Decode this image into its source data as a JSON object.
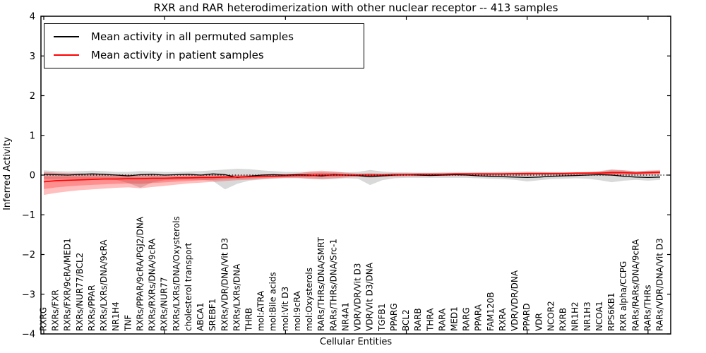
{
  "title": "RXR and RAR heterodimerization with other nuclear receptor -- 413 samples",
  "axes": {
    "ylabel": "Inferred Activity",
    "xlabel": "Cellular Entities"
  },
  "legend": {
    "items": [
      {
        "label": "Mean activity in all permuted samples",
        "color": "#000000"
      },
      {
        "label": "Mean activity in patient samples",
        "color": "#ff0000"
      }
    ]
  },
  "chart_data": {
    "type": "line",
    "title": "RXR and RAR heterodimerization with other nuclear receptor -- 413 samples",
    "xlabel": "Cellular Entities",
    "ylabel": "Inferred Activity",
    "ylim": [
      -4,
      4
    ],
    "yticks": [
      -4,
      -3,
      -2,
      -1,
      0,
      1,
      2,
      3,
      4
    ],
    "ytick_labels": [
      "−4",
      "−3",
      "−2",
      "−1",
      "0",
      "1",
      "2",
      "3",
      "4"
    ],
    "x_major_ticks": [
      0,
      10,
      20,
      30,
      40,
      50
    ],
    "grid": false,
    "legend_position": "upper left",
    "zero_line": {
      "y": 0,
      "style": "dotted",
      "color": "#000000"
    },
    "categories": [
      "RXRG",
      "RXRs/FXR",
      "RXRs/FXR/9cRA/MED1",
      "RXRs/NUR77/BCL2",
      "RXRs/PPAR",
      "RXRs/LXRs/DNA/9cRA",
      "NR1H4",
      "TNF",
      "RXRs/PPAR/9cRA/PGJ2/DNA",
      "RXRs/RXRs/DNA/9cRA",
      "RXRs/NUR77",
      "RXRs/LXRs/DNA/Oxysterols",
      "cholesterol transport",
      "ABCA1",
      "SREBF1",
      "RXRs/VDR/DNA/Vit D3",
      "RXRs/LXRs/DNA",
      "THRB",
      "mol:ATRA",
      "mol:Bile acids",
      "mol:Vit D3",
      "mol:9cRA",
      "mol:Oxysterols",
      "RARs/THRs/DNA/SMRT",
      "RARs/THRs/DNA/Src-1",
      "NR4A1",
      "VDR/VDR/Vit D3",
      "VDR/Vit D3/DNA",
      "TGFB1",
      "PPARG",
      "BCL2",
      "RARB",
      "THRA",
      "RARA",
      "MED1",
      "RARG",
      "PPARA",
      "FAM120B",
      "RXRA",
      "VDR/VDR/DNA",
      "PPARD",
      "VDR",
      "NCOR2",
      "RXRB",
      "NR1H2",
      "NR1H3",
      "NCOA1",
      "RPS6KB1",
      "RXR alpha/CCPG",
      "RARs/RARs/DNA/9cRA",
      "RARs/THRs",
      "RARs/VDR/DNA/Vit D3"
    ],
    "series": [
      {
        "name": "Mean activity in all permuted samples",
        "color": "#000000",
        "band_color": "#808080",
        "band_opacity": 0.3,
        "values": [
          0.02,
          0.01,
          0.0,
          0.02,
          0.03,
          0.02,
          0.0,
          -0.02,
          0.01,
          0.02,
          0.0,
          0.01,
          0.02,
          0.0,
          0.03,
          0.01,
          -0.06,
          -0.03,
          0.0,
          0.01,
          0.0,
          0.01,
          0.0,
          -0.02,
          0.01,
          0.0,
          -0.01,
          -0.04,
          -0.02,
          0.0,
          0.01,
          0.0,
          -0.01,
          0.0,
          0.01,
          0.0,
          -0.02,
          -0.03,
          -0.04,
          -0.05,
          -0.06,
          -0.05,
          -0.03,
          -0.02,
          -0.01,
          0.0,
          0.01,
          0.0,
          -0.03,
          -0.05,
          -0.06,
          -0.05
        ],
        "band_upper": [
          0.12,
          0.1,
          0.09,
          0.1,
          0.11,
          0.1,
          0.08,
          0.08,
          0.1,
          0.09,
          0.08,
          0.08,
          0.09,
          0.1,
          0.12,
          0.14,
          0.16,
          0.15,
          0.12,
          0.1,
          0.08,
          0.08,
          0.08,
          0.08,
          0.08,
          0.07,
          0.08,
          0.13,
          0.09,
          0.07,
          0.07,
          0.06,
          0.06,
          0.07,
          0.06,
          0.06,
          0.07,
          0.07,
          0.08,
          0.08,
          0.09,
          0.08,
          0.07,
          0.07,
          0.07,
          0.07,
          0.1,
          0.15,
          0.12,
          0.1,
          0.11,
          0.1
        ],
        "band_lower": [
          -0.1,
          -0.1,
          -0.09,
          -0.1,
          -0.12,
          -0.11,
          -0.12,
          -0.2,
          -0.32,
          -0.18,
          -0.13,
          -0.12,
          -0.11,
          -0.12,
          -0.15,
          -0.36,
          -0.22,
          -0.14,
          -0.11,
          -0.09,
          -0.08,
          -0.08,
          -0.09,
          -0.11,
          -0.1,
          -0.08,
          -0.09,
          -0.25,
          -0.13,
          -0.08,
          -0.07,
          -0.07,
          -0.07,
          -0.07,
          -0.07,
          -0.07,
          -0.08,
          -0.09,
          -0.1,
          -0.12,
          -0.16,
          -0.13,
          -0.1,
          -0.09,
          -0.08,
          -0.09,
          -0.13,
          -0.18,
          -0.14,
          -0.12,
          -0.14,
          -0.12
        ]
      },
      {
        "name": "Mean activity in patient samples",
        "color": "#ff0000",
        "band_color": "#ff0000",
        "band_opacity": 0.25,
        "band_inner_scale": 0.55,
        "values": [
          -0.17,
          -0.14,
          -0.13,
          -0.12,
          -0.11,
          -0.1,
          -0.1,
          -0.09,
          -0.09,
          -0.08,
          -0.08,
          -0.07,
          -0.07,
          -0.06,
          -0.06,
          -0.05,
          -0.05,
          -0.04,
          -0.03,
          -0.03,
          -0.02,
          -0.01,
          -0.01,
          0.0,
          0.0,
          0.0,
          0.0,
          0.0,
          0.0,
          0.01,
          0.01,
          0.02,
          0.02,
          0.02,
          0.03,
          0.03,
          0.03,
          0.03,
          0.03,
          0.04,
          0.04,
          0.04,
          0.04,
          0.04,
          0.05,
          0.05,
          0.05,
          0.06,
          0.06,
          0.05,
          0.06,
          0.07
        ],
        "band_upper": [
          0.08,
          0.06,
          0.05,
          0.04,
          0.03,
          0.02,
          0.02,
          0.01,
          0.0,
          0.0,
          -0.01,
          -0.01,
          0.0,
          0.0,
          0.0,
          0.0,
          0.0,
          0.0,
          0.01,
          0.01,
          0.02,
          0.04,
          0.09,
          0.11,
          0.09,
          0.06,
          0.04,
          0.05,
          0.04,
          0.05,
          0.05,
          0.05,
          0.05,
          0.05,
          0.06,
          0.06,
          0.06,
          0.06,
          0.06,
          0.06,
          0.07,
          0.07,
          0.07,
          0.07,
          0.07,
          0.08,
          0.09,
          0.13,
          0.12,
          0.09,
          0.11,
          0.13
        ],
        "band_lower": [
          -0.5,
          -0.45,
          -0.41,
          -0.38,
          -0.36,
          -0.34,
          -0.32,
          -0.31,
          -0.33,
          -0.3,
          -0.27,
          -0.24,
          -0.21,
          -0.19,
          -0.17,
          -0.15,
          -0.13,
          -0.12,
          -0.1,
          -0.08,
          -0.07,
          -0.07,
          -0.09,
          -0.1,
          -0.08,
          -0.06,
          -0.05,
          -0.06,
          -0.05,
          -0.04,
          -0.03,
          -0.03,
          -0.02,
          -0.02,
          -0.02,
          -0.01,
          -0.01,
          -0.01,
          -0.01,
          -0.01,
          -0.01,
          0.0,
          0.0,
          0.0,
          0.0,
          0.01,
          0.0,
          -0.02,
          0.0,
          0.01,
          0.01,
          0.02
        ]
      }
    ]
  }
}
